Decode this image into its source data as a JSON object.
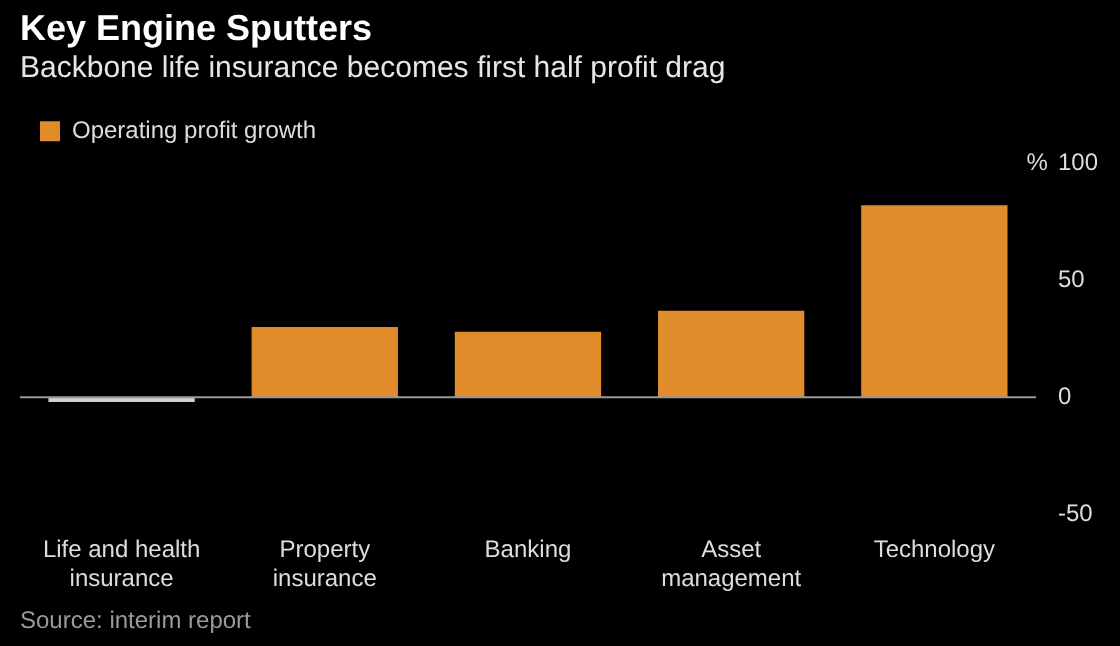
{
  "chart_data": {
    "type": "bar",
    "title": "Key Engine Sputters",
    "subtitle": "Backbone life insurance becomes first half profit drag",
    "categories": [
      "Life and health insurance",
      "Property insurance",
      "Banking",
      "Asset management",
      "Technology"
    ],
    "series": [
      {
        "name": "Operating profit growth",
        "color": "#e08c2a",
        "colors": [
          "#d0d0d0",
          "#e08c2a",
          "#e08c2a",
          "#e08c2a",
          "#e08c2a"
        ],
        "values": [
          -2,
          30,
          28,
          37,
          82
        ]
      }
    ],
    "ylabel": "%",
    "ylim": [
      -50,
      100
    ],
    "yticks": [
      -50,
      0,
      50,
      100
    ],
    "grid": false,
    "ref_lines": [
      {
        "axis": "y",
        "value": 0,
        "color": "#9a9a9a"
      }
    ],
    "legend": "top left",
    "annotations": [
      "Source: interim report"
    ]
  }
}
